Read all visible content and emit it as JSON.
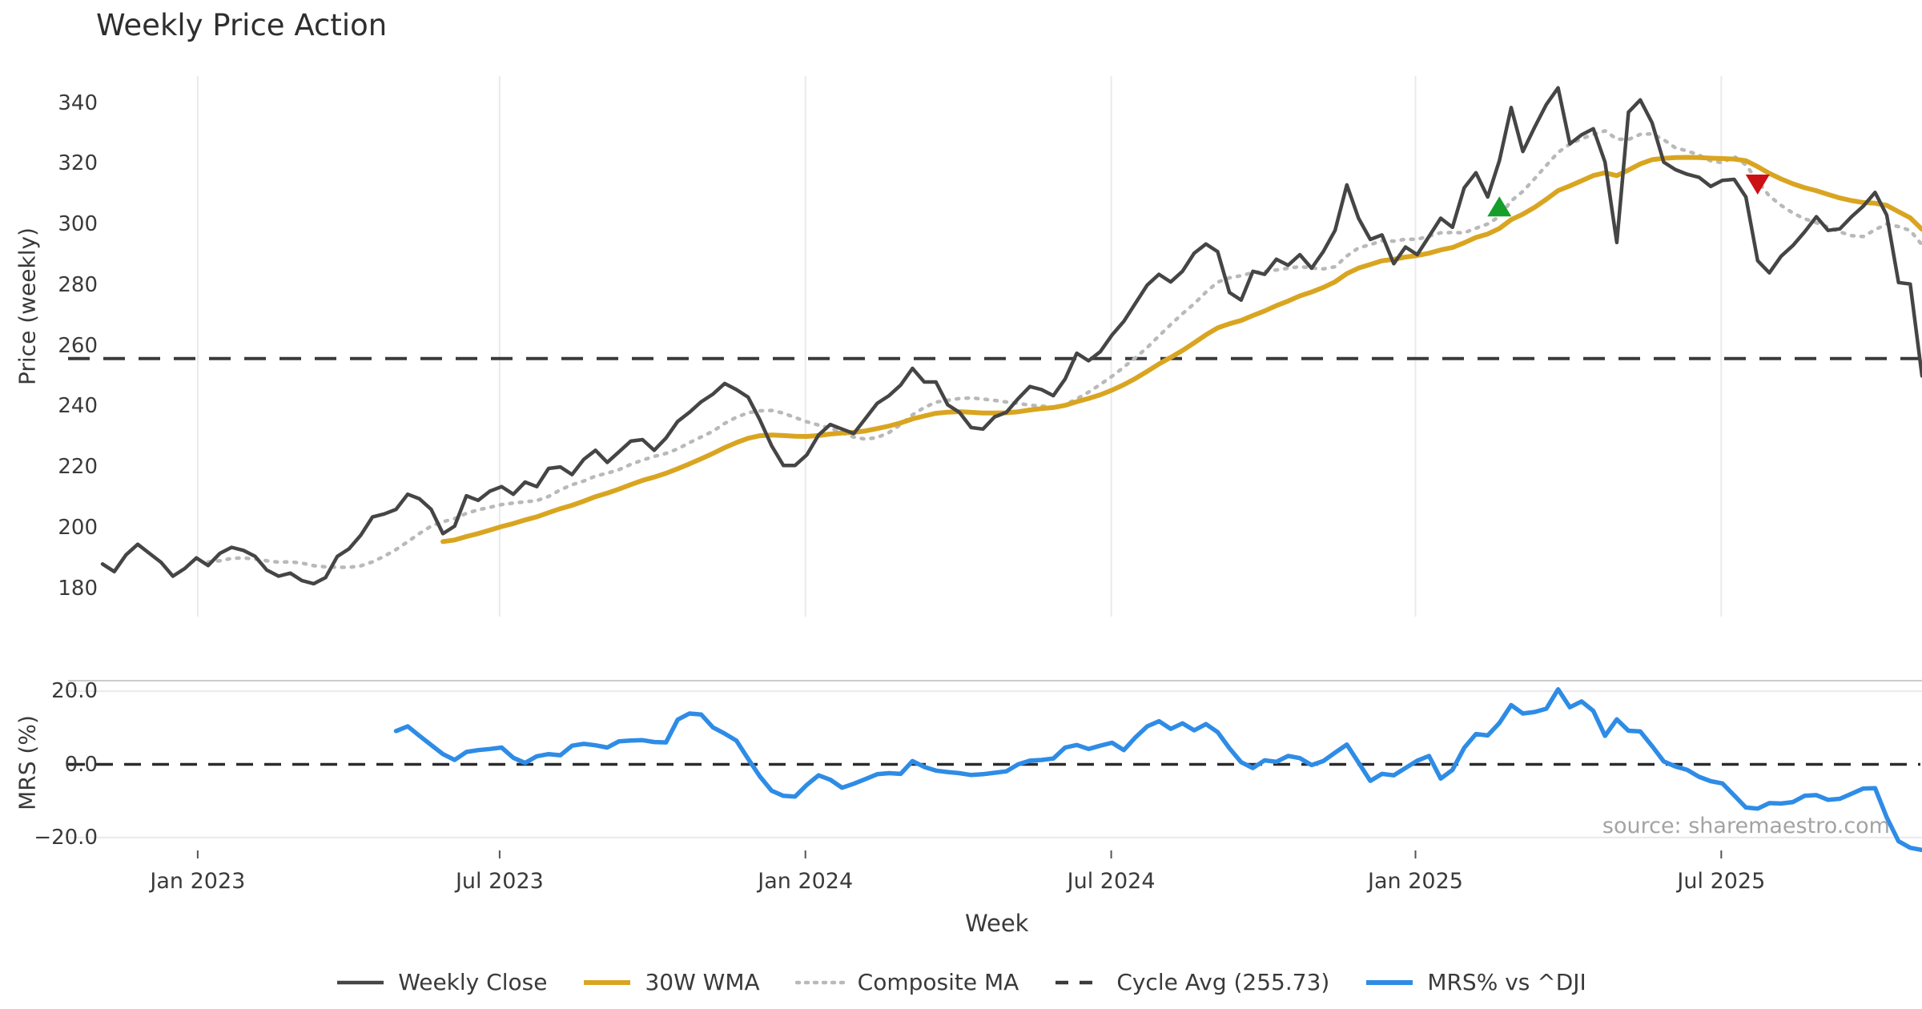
{
  "title": "Weekly Price Action",
  "source_credit": "source: sharemaestro.com",
  "colors": {
    "close": "#454545",
    "wma": "#d9a521",
    "composite": "#b9b9b9",
    "cycle_avg": "#3a3a3a",
    "mrs": "#2e8ce6",
    "buy_marker": "#169e2b",
    "sell_marker": "#cb1016",
    "gridline": "#e9e9ef",
    "spine": "#cccccc",
    "tick_text": "#3a3a3a",
    "title_text": "#2e2e2e",
    "source_text": "#a3a3a3",
    "background": "#ffffff"
  },
  "chart_data": {
    "type": "line",
    "title": "Weekly Price Action",
    "xlabel": "Week",
    "x_ticks": [
      {
        "label": "Jan 2023",
        "week": 8.11
      },
      {
        "label": "Jul 2023",
        "week": 33.83
      },
      {
        "label": "Jan 2024",
        "week": 59.88
      },
      {
        "label": "Jul 2024",
        "week": 85.93
      },
      {
        "label": "Jan 2025",
        "week": 111.85
      },
      {
        "label": "Jul 2025",
        "week": 137.9
      }
    ],
    "weeks_total": 156,
    "panels": [
      {
        "name": "price",
        "ylabel": "Price (weekly)",
        "ylim": [
          170.6,
          348.9
        ],
        "yticks": [
          {
            "label": "180",
            "v": 180
          },
          {
            "label": "200",
            "v": 200
          },
          {
            "label": "220",
            "v": 220
          },
          {
            "label": "240",
            "v": 240
          },
          {
            "label": "260",
            "v": 260
          },
          {
            "label": "280",
            "v": 280
          },
          {
            "label": "300",
            "v": 300
          },
          {
            "label": "320",
            "v": 320
          },
          {
            "label": "340",
            "v": 340
          }
        ],
        "grid_vertical": true,
        "cycle_avg": 255.73,
        "series": [
          {
            "name": "Weekly Close",
            "key": "close",
            "start_week": 0,
            "values": [
              188,
              185.5,
              191,
              194.5,
              191.5,
              188.5,
              184,
              186.5,
              190,
              187.5,
              191.5,
              193.5,
              192.5,
              190.5,
              186,
              184,
              185,
              182.5,
              181.5,
              183.5,
              190.5,
              193,
              197.5,
              203.5,
              204.5,
              206,
              211,
              209.5,
              206,
              198,
              200.5,
              210.5,
              209,
              212,
              213.5,
              211,
              215,
              213.5,
              219.5,
              220,
              217.5,
              222.5,
              225.5,
              221.5,
              225,
              228.5,
              229,
              225.5,
              229.5,
              235,
              238,
              241.5,
              244,
              247.5,
              245.5,
              243,
              235.5,
              227,
              220.5,
              220.5,
              224,
              230.5,
              234,
              232.5,
              231,
              236,
              241,
              243.5,
              247,
              252.5,
              248,
              248,
              240.5,
              238,
              233,
              232.5,
              236.5,
              238,
              242.5,
              246.5,
              245.5,
              243.5,
              249,
              257.5,
              255,
              258,
              263.5,
              268,
              274,
              280,
              283.5,
              281,
              284.5,
              290.5,
              293.5,
              291,
              277.5,
              275,
              284.5,
              283.5,
              288.5,
              286.5,
              290,
              285.5,
              291,
              298,
              313,
              302,
              295,
              296.5,
              287,
              292.5,
              290,
              296,
              302,
              299,
              312,
              317,
              309,
              321,
              338.5,
              324,
              332,
              339.5,
              345,
              326.5,
              329.5,
              331.5,
              320.5,
              294,
              337,
              341,
              333.5,
              320.5,
              318,
              316.5,
              315.5,
              312.5,
              314.5,
              314.8,
              309,
              288,
              284,
              289.5,
              293,
              297.5,
              302.5,
              298,
              298.5,
              302.5,
              306,
              310.5,
              303,
              280.8,
              280.3,
              250
            ]
          },
          {
            "name": "30W WMA",
            "key": "wma",
            "derived": "wma",
            "window": 30
          },
          {
            "name": "Composite MA",
            "key": "composite",
            "derived": "sma",
            "window": 10,
            "start_week": 9
          },
          {
            "name": "Cycle Avg (255.73)",
            "key": "cycle_avg",
            "derived": "constant",
            "value": 255.73
          }
        ],
        "markers": [
          {
            "name": "buy-signal",
            "shape": "triangle-up",
            "week": 119,
            "value": 305.5
          },
          {
            "name": "sell-signal",
            "shape": "triangle-down",
            "week": 141,
            "value": 313.5
          }
        ]
      },
      {
        "name": "mrs",
        "ylabel": "MRS (%)",
        "ylim": [
          -23.5,
          22.9
        ],
        "yticks": [
          {
            "label": "−20.0",
            "v": -20
          },
          {
            "label": "0.0",
            "v": 0
          },
          {
            "label": "20.0",
            "v": 20
          }
        ],
        "zero_line_dashed": true,
        "grid_horizontal": [
          20,
          -20
        ],
        "series": [
          {
            "name": "MRS% vs ^DJI",
            "key": "mrs",
            "start_week": 25,
            "values": [
              9.1,
              10.4,
              7.8,
              5.3,
              2.8,
              1.2,
              3.4,
              3.9,
              4.2,
              4.6,
              1.8,
              0.4,
              2.2,
              2.8,
              2.5,
              5.1,
              5.6,
              5.2,
              4.6,
              6.3,
              6.5,
              6.6,
              6.1,
              6.0,
              12.2,
              13.9,
              13.6,
              10.1,
              8.4,
              6.5,
              1.5,
              -3.3,
              -7.2,
              -8.6,
              -8.8,
              -5.6,
              -3.0,
              -4.2,
              -6.4,
              -5.3,
              -4.0,
              -2.7,
              -2.4,
              -2.6,
              0.9,
              -0.7,
              -1.7,
              -2.1,
              -2.4,
              -2.9,
              -2.7,
              -2.3,
              -1.9,
              0.0,
              1.0,
              1.2,
              1.6,
              4.6,
              5.3,
              4.2,
              5.1,
              5.9,
              3.9,
              7.4,
              10.4,
              11.8,
              9.7,
              11.2,
              9.3,
              11.0,
              8.8,
              4.4,
              0.6,
              -1.0,
              1.1,
              0.7,
              2.3,
              1.7,
              -0.2,
              0.9,
              3.2,
              5.4,
              0.5,
              -4.5,
              -2.6,
              -3.0,
              -1.0,
              1.0,
              2.3,
              -3.9,
              -1.5,
              4.5,
              8.3,
              7.9,
              11.3,
              16.2,
              13.9,
              14.3,
              15.2,
              20.5,
              15.6,
              17.2,
              14.6,
              7.8,
              12.3,
              9.2,
              9.0,
              5.0,
              0.8,
              -0.6,
              -1.5,
              -3.4,
              -4.6,
              -5.2,
              -8.5,
              -11.8,
              -12.1,
              -10.6,
              -10.7,
              -10.3,
              -8.6,
              -8.4,
              -9.7,
              -9.4,
              -8.0,
              -6.6,
              -6.5,
              -14.5,
              -21,
              -22.8,
              -23.4
            ]
          }
        ]
      }
    ],
    "legend": [
      {
        "label": "Weekly Close",
        "key": "close",
        "style": "solid"
      },
      {
        "label": "30W WMA",
        "key": "wma",
        "style": "solid"
      },
      {
        "label": "Composite MA",
        "key": "composite",
        "style": "dotted"
      },
      {
        "label": "Cycle Avg (255.73)",
        "key": "cycle_avg",
        "style": "dashed"
      },
      {
        "label": "MRS% vs ^DJI",
        "key": "mrs",
        "style": "solid"
      }
    ],
    "legend_position": "bottom-center",
    "grid": "light vertical lines at half-year ticks (price panel only)"
  }
}
